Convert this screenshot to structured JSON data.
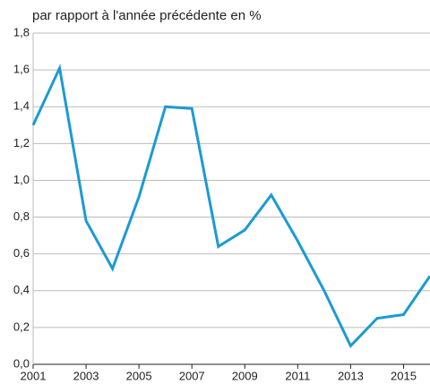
{
  "chart_data": {
    "type": "line",
    "title": "par rapport à l'année précédente en %",
    "x": [
      2001,
      2002,
      2003,
      2004,
      2005,
      2006,
      2007,
      2008,
      2009,
      2010,
      2011,
      2012,
      2013,
      2014,
      2015,
      2016
    ],
    "series": [
      {
        "name": null,
        "color": "#1b9ad6",
        "values": [
          1.3,
          1.61,
          0.78,
          0.52,
          0.91,
          1.4,
          1.39,
          0.64,
          0.73,
          0.92,
          0.67,
          0.4,
          0.1,
          0.25,
          0.27,
          0.48
        ]
      }
    ],
    "xlim": [
      2001,
      2016
    ],
    "xticks": [
      2001,
      2003,
      2005,
      2007,
      2009,
      2011,
      2013,
      2015
    ],
    "ylim": [
      0,
      1.8
    ],
    "yticks": [
      {
        "value": 0,
        "label": "0,0"
      },
      {
        "value": 0.2,
        "label": "0,2"
      },
      {
        "value": 0.4,
        "label": "0,4"
      },
      {
        "value": 0.6,
        "label": "0,6"
      },
      {
        "value": 0.8,
        "label": "0,8"
      },
      {
        "value": 1.0,
        "label": "1,0"
      },
      {
        "value": 1.2,
        "label": "1,2"
      },
      {
        "value": 1.4,
        "label": "1,4"
      },
      {
        "value": 1.6,
        "label": "1,6"
      },
      {
        "value": 1.8,
        "label": "1,8"
      }
    ],
    "grid": true
  }
}
